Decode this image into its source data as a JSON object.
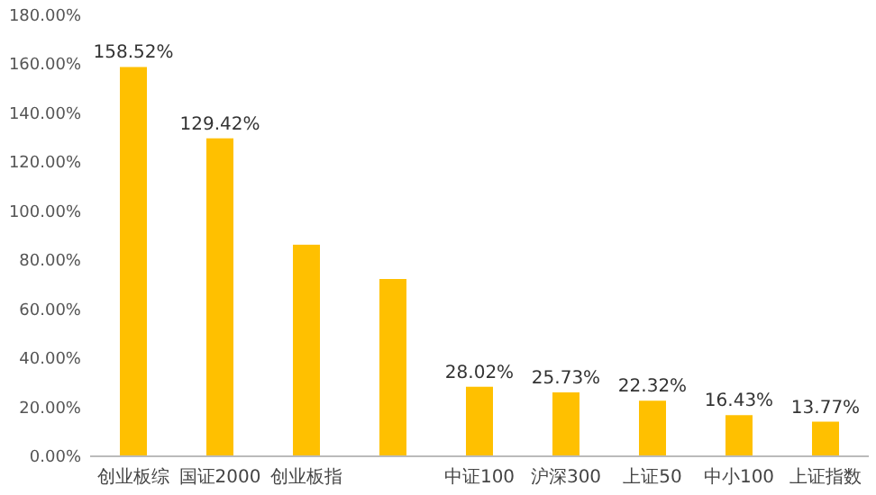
{
  "chart_data": {
    "type": "bar",
    "categories": [
      "创业板综",
      "国证2000",
      "创业板指",
      null,
      "中证100",
      "沪深300",
      "上证50",
      "中小100",
      "上证指数"
    ],
    "values": [
      158.52,
      129.42,
      86,
      72,
      28.02,
      25.73,
      22.32,
      16.43,
      13.77
    ],
    "value_labels": [
      "158.52%",
      "129.42%",
      null,
      null,
      "28.02%",
      "25.73%",
      "22.32%",
      "16.43%",
      "13.77%"
    ],
    "color": "#ffc000",
    "ylim": [
      0,
      180
    ],
    "yticks": [
      {
        "value": 0,
        "label": "0.00%"
      },
      {
        "value": 20,
        "label": "20.00%"
      },
      {
        "value": 40,
        "label": "40.00%"
      },
      {
        "value": 60,
        "label": "60.00%"
      },
      {
        "value": 80,
        "label": "80.00%"
      },
      {
        "value": 100,
        "label": "100.00%"
      },
      {
        "value": 120,
        "label": "120.00%"
      },
      {
        "value": 140,
        "label": "140.00%"
      },
      {
        "value": 160,
        "label": "160.00%"
      },
      {
        "value": 180,
        "label": "180.00%"
      }
    ]
  }
}
